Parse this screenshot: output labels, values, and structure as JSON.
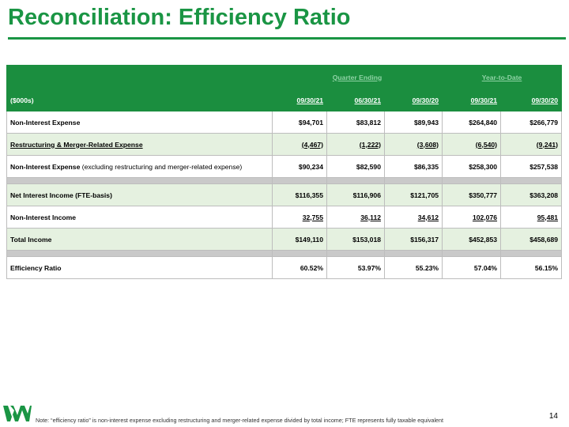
{
  "title": "Reconciliation: Efficiency Ratio",
  "page_number": "14",
  "note": "Note: “efficiency ratio” is non-interest expense excluding restructuring and merger-related expense divided by total income; FTE represents fully taxable equivalent",
  "table": {
    "group_quarter": "Quarter Ending",
    "group_ytd": "Year-to-Date",
    "unit_label": "($000s)",
    "columns": [
      "09/30/21",
      "06/30/21",
      "09/30/20",
      "09/30/21",
      "09/30/20"
    ],
    "rows": [
      {
        "label": "Non-Interest Expense",
        "label_suffix": "",
        "values": [
          "$94,701",
          "$83,812",
          "$89,943",
          "$264,840",
          "$266,779"
        ]
      },
      {
        "label": "Restructuring & Merger-Related Expense",
        "label_suffix": "",
        "values": [
          "(4,467)",
          "(1,222)",
          "(3,608)",
          "(6,540)",
          "(9,241)"
        ]
      },
      {
        "label": "Non-Interest Expense",
        "label_suffix": " (excluding restructuring and merger-related expense)",
        "values": [
          "$90,234",
          "$82,590",
          "$86,335",
          "$258,300",
          "$257,538"
        ]
      },
      {
        "label": "Net Interest Income (FTE-basis)",
        "label_suffix": "",
        "values": [
          "$116,355",
          "$116,906",
          "$121,705",
          "$350,777",
          "$363,208"
        ]
      },
      {
        "label": "Non-Interest Income",
        "label_suffix": "",
        "values": [
          "32,755",
          "36,112",
          "34,612",
          "102,076",
          "95,481"
        ]
      },
      {
        "label": "Total Income",
        "label_suffix": "",
        "values": [
          "$149,110",
          "$153,018",
          "$156,317",
          "$452,853",
          "$458,689"
        ]
      },
      {
        "label": "Efficiency Ratio",
        "label_suffix": "",
        "values": [
          "60.52%",
          "53.97%",
          "55.23%",
          "57.04%",
          "56.15%"
        ]
      }
    ]
  },
  "colors": {
    "brand_green": "#1a9544",
    "row_shade": "#e5f1e0"
  },
  "logo_icon": "wesbanco-w-logo"
}
